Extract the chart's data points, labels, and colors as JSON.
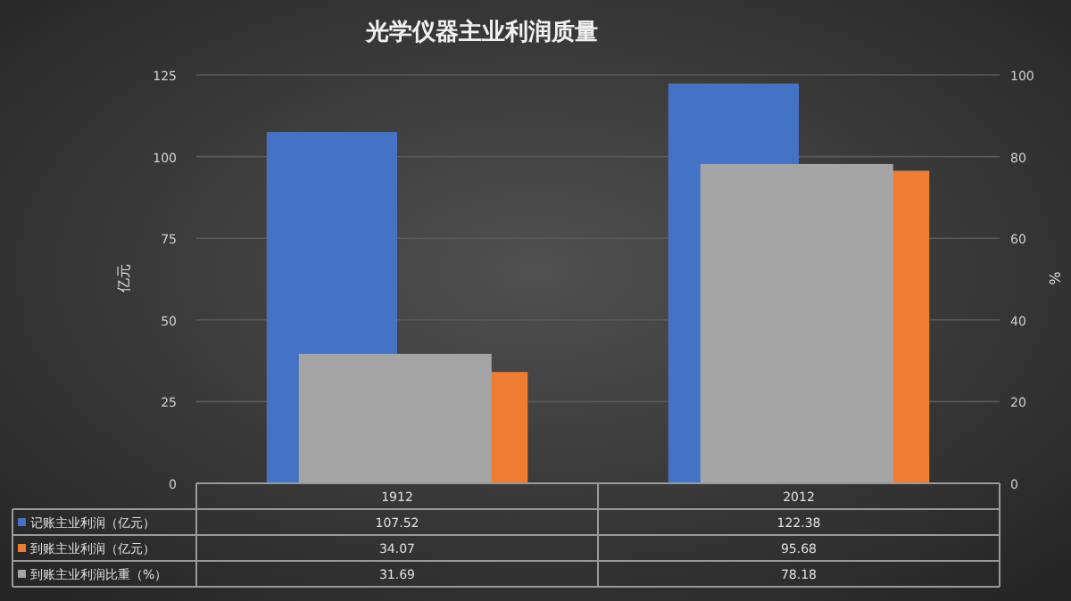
{
  "chart_data": {
    "type": "bar",
    "title": "光学仪器主业利润质量",
    "ylabel": "亿元",
    "y2label": "%",
    "categories": [
      "1912",
      "2012"
    ],
    "series": [
      {
        "name": "记账主业利润（亿元）",
        "color": "#4472c4",
        "values": [
          107.52,
          122.38
        ]
      },
      {
        "name": "到账主业利润（亿元）",
        "color": "#ed7d31",
        "values": [
          34.07,
          95.68
        ]
      },
      {
        "name": "到账主业利润比重（%）",
        "color": "#a5a5a5",
        "values": [
          31.69,
          78.18
        ],
        "axis": "y2"
      }
    ],
    "ylim": [
      0,
      125
    ],
    "yticks": [
      0,
      25,
      50,
      75,
      100,
      125
    ],
    "y2lim": [
      0,
      100
    ],
    "y2ticks": [
      0,
      20,
      40,
      60,
      80,
      100
    ],
    "grid": "y",
    "data_labels": true,
    "legend": "bottom"
  }
}
